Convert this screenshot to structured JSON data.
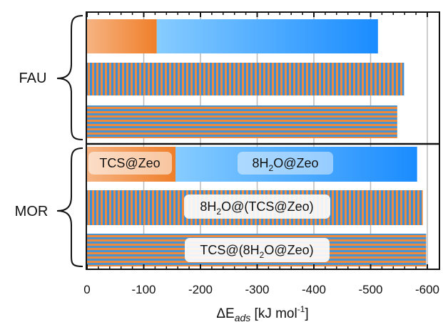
{
  "chart_data": {
    "type": "bar",
    "orientation": "horizontal",
    "stacked": true,
    "xlabel_prefix": "ΔE",
    "xlabel_sub": "ads",
    "xlabel_unit": "[kJ mol",
    "xlabel_unit_sup": "-1",
    "xlabel_unit_end": "]",
    "xlim": [
      0,
      -620
    ],
    "xticks": [
      0,
      -100,
      -200,
      -300,
      -400,
      -500,
      -600
    ],
    "grid": true,
    "groups": [
      {
        "name": "FAU",
        "bars": [
          {
            "style": "stacked-gradient",
            "segments": [
              {
                "name": "TCS@Zeo",
                "value": -123
              },
              {
                "name": "8H2O@Zeo",
                "value": -390
              }
            ],
            "total": -513
          },
          {
            "style": "vertical-stripes",
            "name": "8H2O@(TCS@Zeo)",
            "value": -559
          },
          {
            "style": "horizontal-stripes",
            "name": "TCS@(8H2O@Zeo)",
            "value": -547
          }
        ]
      },
      {
        "name": "MOR",
        "bars": [
          {
            "style": "stacked-gradient",
            "segments": [
              {
                "name": "TCS@Zeo",
                "value": -156
              },
              {
                "name": "8H2O@Zeo",
                "value": -426
              }
            ],
            "total": -582
          },
          {
            "style": "vertical-stripes",
            "name": "8H2O@(TCS@Zeo)",
            "value": -592
          },
          {
            "style": "horizontal-stripes",
            "name": "TCS@(8H2O@Zeo)",
            "value": -598
          }
        ]
      }
    ],
    "labels": {
      "tcs_zeo": "TCS@Zeo",
      "h2o_zeo_pre": "8H",
      "h2o_zeo_sub": "2",
      "h2o_zeo_post": "O@Zeo",
      "h2o_tcs_pre": "8H",
      "h2o_tcs_sub": "2",
      "h2o_tcs_post": "O@(TCS@Zeo)",
      "tcs_h2o_pre": "TCS@(8H",
      "tcs_h2o_sub": "2",
      "tcs_h2o_post": "O@Zeo)"
    },
    "colors": {
      "orange": "#f08a3c",
      "orange_light": "#f5b07e",
      "blue": "#1e90ff",
      "blue_light": "#7cc6ff",
      "stripe_blue": "#3a8fd8",
      "grid": "#bbbbbb"
    }
  }
}
